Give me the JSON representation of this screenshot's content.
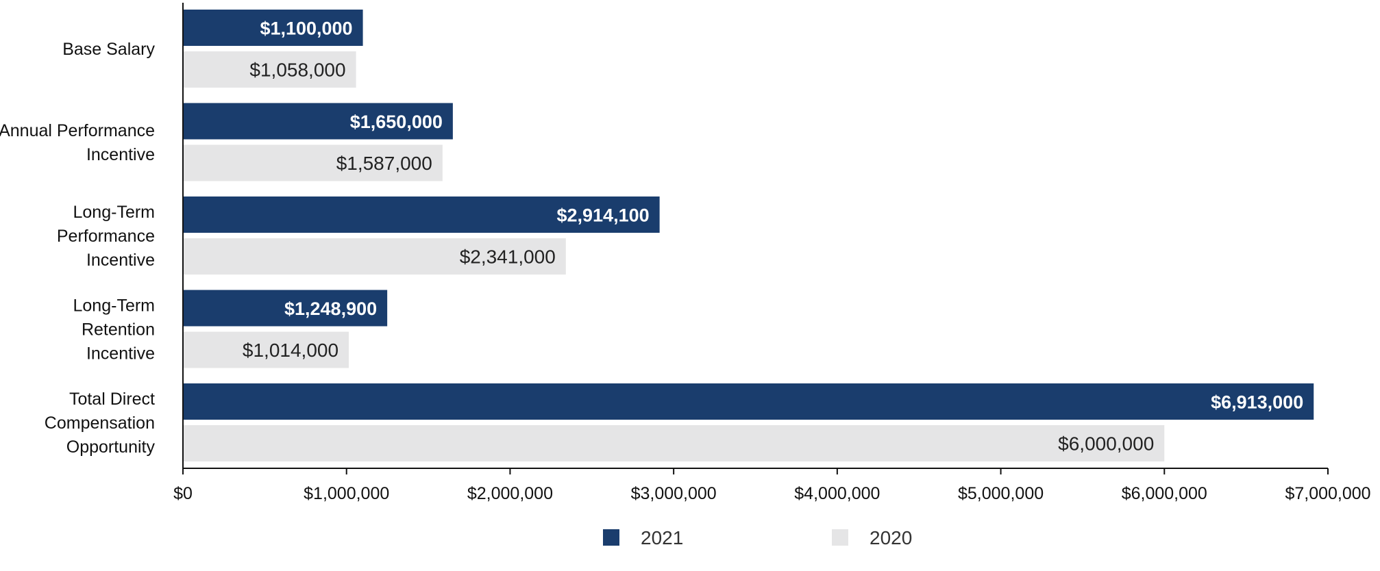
{
  "chart_data": {
    "type": "bar",
    "orientation": "horizontal",
    "categories": [
      [
        "Base Salary"
      ],
      [
        "Annual Performance",
        "Incentive"
      ],
      [
        "Long-Term",
        "Performance",
        "Incentive"
      ],
      [
        "Long-Term",
        "Retention",
        "Incentive"
      ],
      [
        "Total Direct",
        "Compensation",
        "Opportunity"
      ]
    ],
    "series": [
      {
        "name": "2021",
        "color": "#1a3d6d",
        "values": [
          1100000,
          1650000,
          2914100,
          1248900,
          6913000
        ],
        "labels": [
          "$1,100,000",
          "$1,650,000",
          "$2,914,100",
          "$1,248,900",
          "$6,913,000"
        ]
      },
      {
        "name": "2020",
        "color": "#e5e5e6",
        "values": [
          1058000,
          1587000,
          2341000,
          1014000,
          6000000
        ],
        "labels": [
          "$1,058,000",
          "$1,587,000",
          "$2,341,000",
          "$1,014,000",
          "$6,000,000"
        ]
      }
    ],
    "xlim": [
      0,
      7000000
    ],
    "xticks": [
      0,
      1000000,
      2000000,
      3000000,
      4000000,
      5000000,
      6000000,
      7000000
    ],
    "xtick_labels": [
      "$0",
      "$1,000,000",
      "$2,000,000",
      "$3,000,000",
      "$4,000,000",
      "$5,000,000",
      "$6,000,000",
      "$7,000,000"
    ],
    "title": "",
    "xlabel": "",
    "ylabel": "",
    "grid": false,
    "legend_position": "bottom-center"
  }
}
